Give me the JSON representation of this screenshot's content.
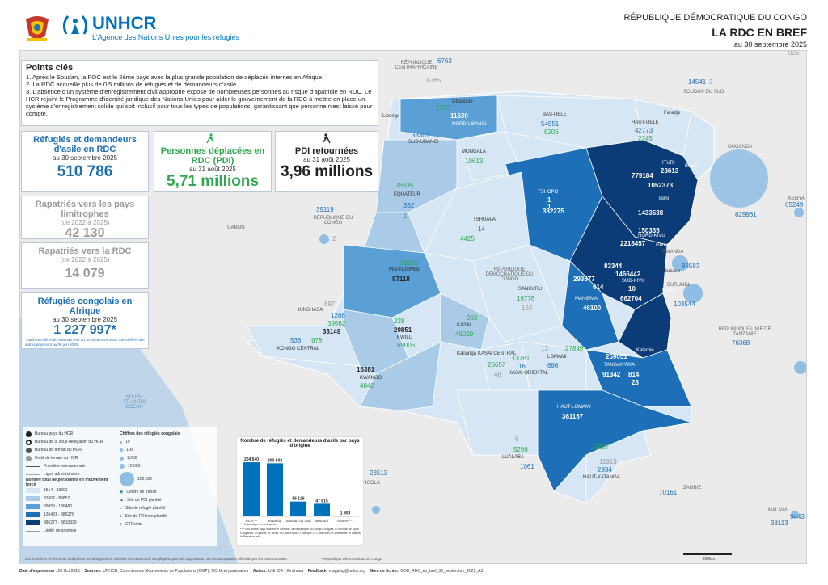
{
  "header": {
    "org_name": "UNHCR",
    "org_tagline": "L'Agence des Nations Unies pour les réfugiés",
    "country": "RÉPUBLIQUE DÉMOCRATIQUE DU CONGO",
    "title": "LA RDC EN BREF",
    "date": "au 30 septembre 2025",
    "scale_top": "926"
  },
  "points_cles": {
    "title": "Points clés",
    "items": [
      "1. Après le Soudan, la RDC est le 2ème pays avec la plus grande population de déplacés internes en Afrique.",
      "2. La RDC accueille plus de 0,5 millions de réfugiés et de demandeurs d'asile.",
      "3. L'absence d'un système d'enregistrement civil approprié expose de nombreuses personnes au risque d'apatridie en RDC. Le HCR rejoint le Programme d'identité juridique des Nations Unies pour aider le gouvernement de la RDC à mettre en place un système d'enregistrement solide qui soit inclusif pour tous les types de populations, garantissant que personne n'est laissé pour compte."
    ]
  },
  "kpis": {
    "refugees": {
      "title": "Réfugiés et demandeurs d'asile en RDC",
      "date": "au 30 septembre 2025",
      "value": "510 786"
    },
    "idp": {
      "title": "Personnes déplacées en RDC (PDI)",
      "date": "au 31 août 2025",
      "value": "5,71 millions"
    },
    "idp_returned": {
      "title": "PDI retournées",
      "date": "au 31 août 2025",
      "value": "3,96 millions"
    },
    "repatriated_out": {
      "title": "Rapatriés vers les pays limitrophes",
      "sub": "(de 2022 à 2025)",
      "value": "42 130"
    },
    "repatriated_in": {
      "title": "Rapatriés vers la RDC",
      "sub": "(de 2022 à 2025)",
      "value": "14 079"
    },
    "abroad": {
      "title": "Réfugiés congolais en Afrique",
      "date": "au 30 septembre 2025",
      "value": "1 227 997*",
      "note": "*Sauf les chiffres du Rwanda sont au 30 septembre 2025. Les chiffres des autres pays sont au 30 juin 2025."
    }
  },
  "countries": {
    "car": "RÉPUBLIQUE CENTRAFRICAINE",
    "south_sudan": "SOUDAN DU SUD",
    "uganda": "OUGANDA",
    "kenya": "KENYA",
    "rwanda": "RWANDA",
    "burundi": "BURUNDI",
    "tanzania": "RÉPUBLIQUE-UNIE DE TANZANIE",
    "zambia": "ZAMBIE",
    "malawi": "MALAWI",
    "angola": "ANGOLA",
    "gabon": "GABON",
    "congo": "RÉPUBLIQUE DU CONGO",
    "drc": "RÉPUBLIQUE DÉMOCRATIQUE DU CONGO",
    "ocean": "SOUTH ATLANTIC OCEAN"
  },
  "country_numbers": {
    "car": "6763",
    "south_sudan": "14541",
    "south_sudan_small": "3",
    "uganda": "629961",
    "kenya": "65249",
    "rwanda": "83583",
    "burundi": "103544",
    "tanzania": "76368",
    "zambia": "70161",
    "malawi_a": "38113",
    "malawi_b": "9443",
    "angola": "23513",
    "congo": "39119",
    "congo_small": "2",
    "car_grey": "18765"
  },
  "provinces": [
    {
      "name": "NORD-UBANGI",
      "a": "2223",
      "b": "11630"
    },
    {
      "name": "SUD-UBANGI",
      "a": "33301"
    },
    {
      "name": "BAS-UELE",
      "a": "54551",
      "b": "6206"
    },
    {
      "name": "HAUT-UELE",
      "a": "42773",
      "b": "2245"
    },
    {
      "name": "MONGALA",
      "a": "10613"
    },
    {
      "name": "EQUATEUR",
      "a": "78335",
      "b": "362",
      "c": "1"
    },
    {
      "name": "TSHOPO",
      "a": "1",
      "b": "1",
      "c": "382275"
    },
    {
      "name": "TSHUAPA",
      "a": "14",
      "b": "4425"
    },
    {
      "name": "ITURI",
      "a": "779184",
      "b": "23613",
      "c": "1052373"
    },
    {
      "name": "NORD-KIVU",
      "a": "1433538",
      "b": "2218457",
      "c": "150335"
    },
    {
      "name": "SUD-KIVU",
      "a": "83344",
      "b": "1466442",
      "c": "10",
      "d": "662704"
    },
    {
      "name": "MANIEMA",
      "a": "293577",
      "b": "614",
      "c": "46100"
    },
    {
      "name": "MAI-NDOMBE",
      "a": "39362",
      "b": "97118"
    },
    {
      "name": "SANKURU",
      "a": "19776",
      "b": "164"
    },
    {
      "name": "KASAI",
      "a": "963",
      "b": "46029"
    },
    {
      "name": "KINSHASA",
      "a": "697",
      "b": "1268",
      "c": "39562",
      "d": "33149"
    },
    {
      "name": "KONGO CENTRAL",
      "a": "536",
      "b": "978"
    },
    {
      "name": "KWILU",
      "a": "228",
      "b": "20851",
      "c": "69006"
    },
    {
      "name": "KWANGO",
      "a": "16381",
      "b": "4842"
    },
    {
      "name": "KASAI CENTRAL",
      "a": "25657",
      "b": "48"
    },
    {
      "name": "KASAI ORIENTAL",
      "a": "13761",
      "b": "16"
    },
    {
      "name": "LOMAMI",
      "a": "13",
      "b": "27849",
      "c": "696"
    },
    {
      "name": "TANGANYIKA",
      "a": "259051",
      "b": "91342",
      "c": "814",
      "d": "23"
    },
    {
      "name": "HAUT-LOMAMI",
      "a": "361167"
    },
    {
      "name": "LUALABA",
      "a": "6",
      "b": "5296",
      "c": "1061"
    },
    {
      "name": "HAUT-KATANGA",
      "a": "21607",
      "b": "11913",
      "c": "2934"
    }
  ],
  "cities": {
    "gbadolite": "Gbadolite",
    "libenge": "Libenge",
    "aru": "Faradje",
    "bunia": "Bunia",
    "beni": "Beni",
    "goma": "Goma",
    "bukavu": "Bukavu",
    "uvira": "Uvira",
    "kalemie": "Kalemie",
    "kinshasa": "Kinshasa",
    "kananga": "Kananga"
  },
  "legend": {
    "bureau_pays": "Bureau pays du HCR",
    "sous_delegation": "Bureau de la sous-délégation du HCR",
    "bureau_terrain": "Bureau de terrain du HCR",
    "unite_terrain": "Unité de terrain du HCR",
    "frontiere": "Frontière internationale",
    "ligne_admin": "Ligne administrative",
    "total_title": "Nombre total de personnes en mouvement forcé",
    "classes": [
      "1514 - 33301",
      "33302 - 89857",
      "89858 - 136480",
      "136481 - 386276",
      "386277 - 3810330"
    ],
    "limite": "Limite de province",
    "chiffres_title": "Chiffres des réfugiés congolais",
    "sizes": [
      "10",
      "100",
      "1,000",
      "10,000",
      "100,000"
    ],
    "transit": "Centre de transit",
    "pdi_planifie": "Site de PDI planifié",
    "refugie": "Site de réfugié planifié",
    "pdi_non": "Site de PDI non planifié",
    "ctp": "CTPoints"
  },
  "bar_chart_title": "Nombre de réfugiés et demandeurs d'asile par pays d'origine",
  "chart_data": {
    "type": "bar",
    "title": "Nombre de réfugiés et demandeurs d'asile par pays d'origine",
    "categories": [
      "RCA***",
      "Rwanda",
      "Soudan du Sud",
      "Burundi",
      "Autres****"
    ],
    "values": [
      204540,
      200602,
      56126,
      47615,
      1903
    ],
    "labels": [
      "204 540",
      "200 602",
      "56 126",
      "47 615",
      "1 903"
    ],
    "ylim": [
      0,
      220000
    ]
  },
  "chart_notes": {
    "n1": "*** République centrafricaine",
    "n2": "**** Les autres pays incluent le Somalie, la République du Congo, l'Angola, le Soudan, le Syrie, l'Ouganda, l'Erythrée, le Tchad, la Côte d'Ivoire, l'Ethiopie, le Cameroun, le Zimbabwe, le Libéria, la Palestine, etc."
  },
  "footnote_rdc": "¹ République Démocratique du Congo",
  "disclaimer": "Les frontières et les noms indiqués et les désignations utilisées sur cette carte n'impliquent pas une approbation ou une acceptation officielle par les Nations Unies.",
  "scale_label": "200km",
  "footer": {
    "date_label": "Date d'impression :",
    "date": "09 Oct 2025",
    "sources_label": "Sources:",
    "sources": "UNHCR, Commissions Mouvements de Populations (CMP), OCHA et partenaires",
    "author_label": "Auteur:",
    "author": "UNHCR - Kinshasa",
    "feedback_label": "Feedback:",
    "feedback": "mapping@unhcr.org",
    "file_label": "Nom de fichier:",
    "file": "COD_RDC_en_bref_30_septembre_2025_A3"
  },
  "colors": {
    "c1": "#d6e6f4",
    "c2": "#a9cbe8",
    "c3": "#5a9fd6",
    "c4": "#1d6fb8",
    "c5": "#0b3c78",
    "unhcr_blue": "#0072bc"
  }
}
